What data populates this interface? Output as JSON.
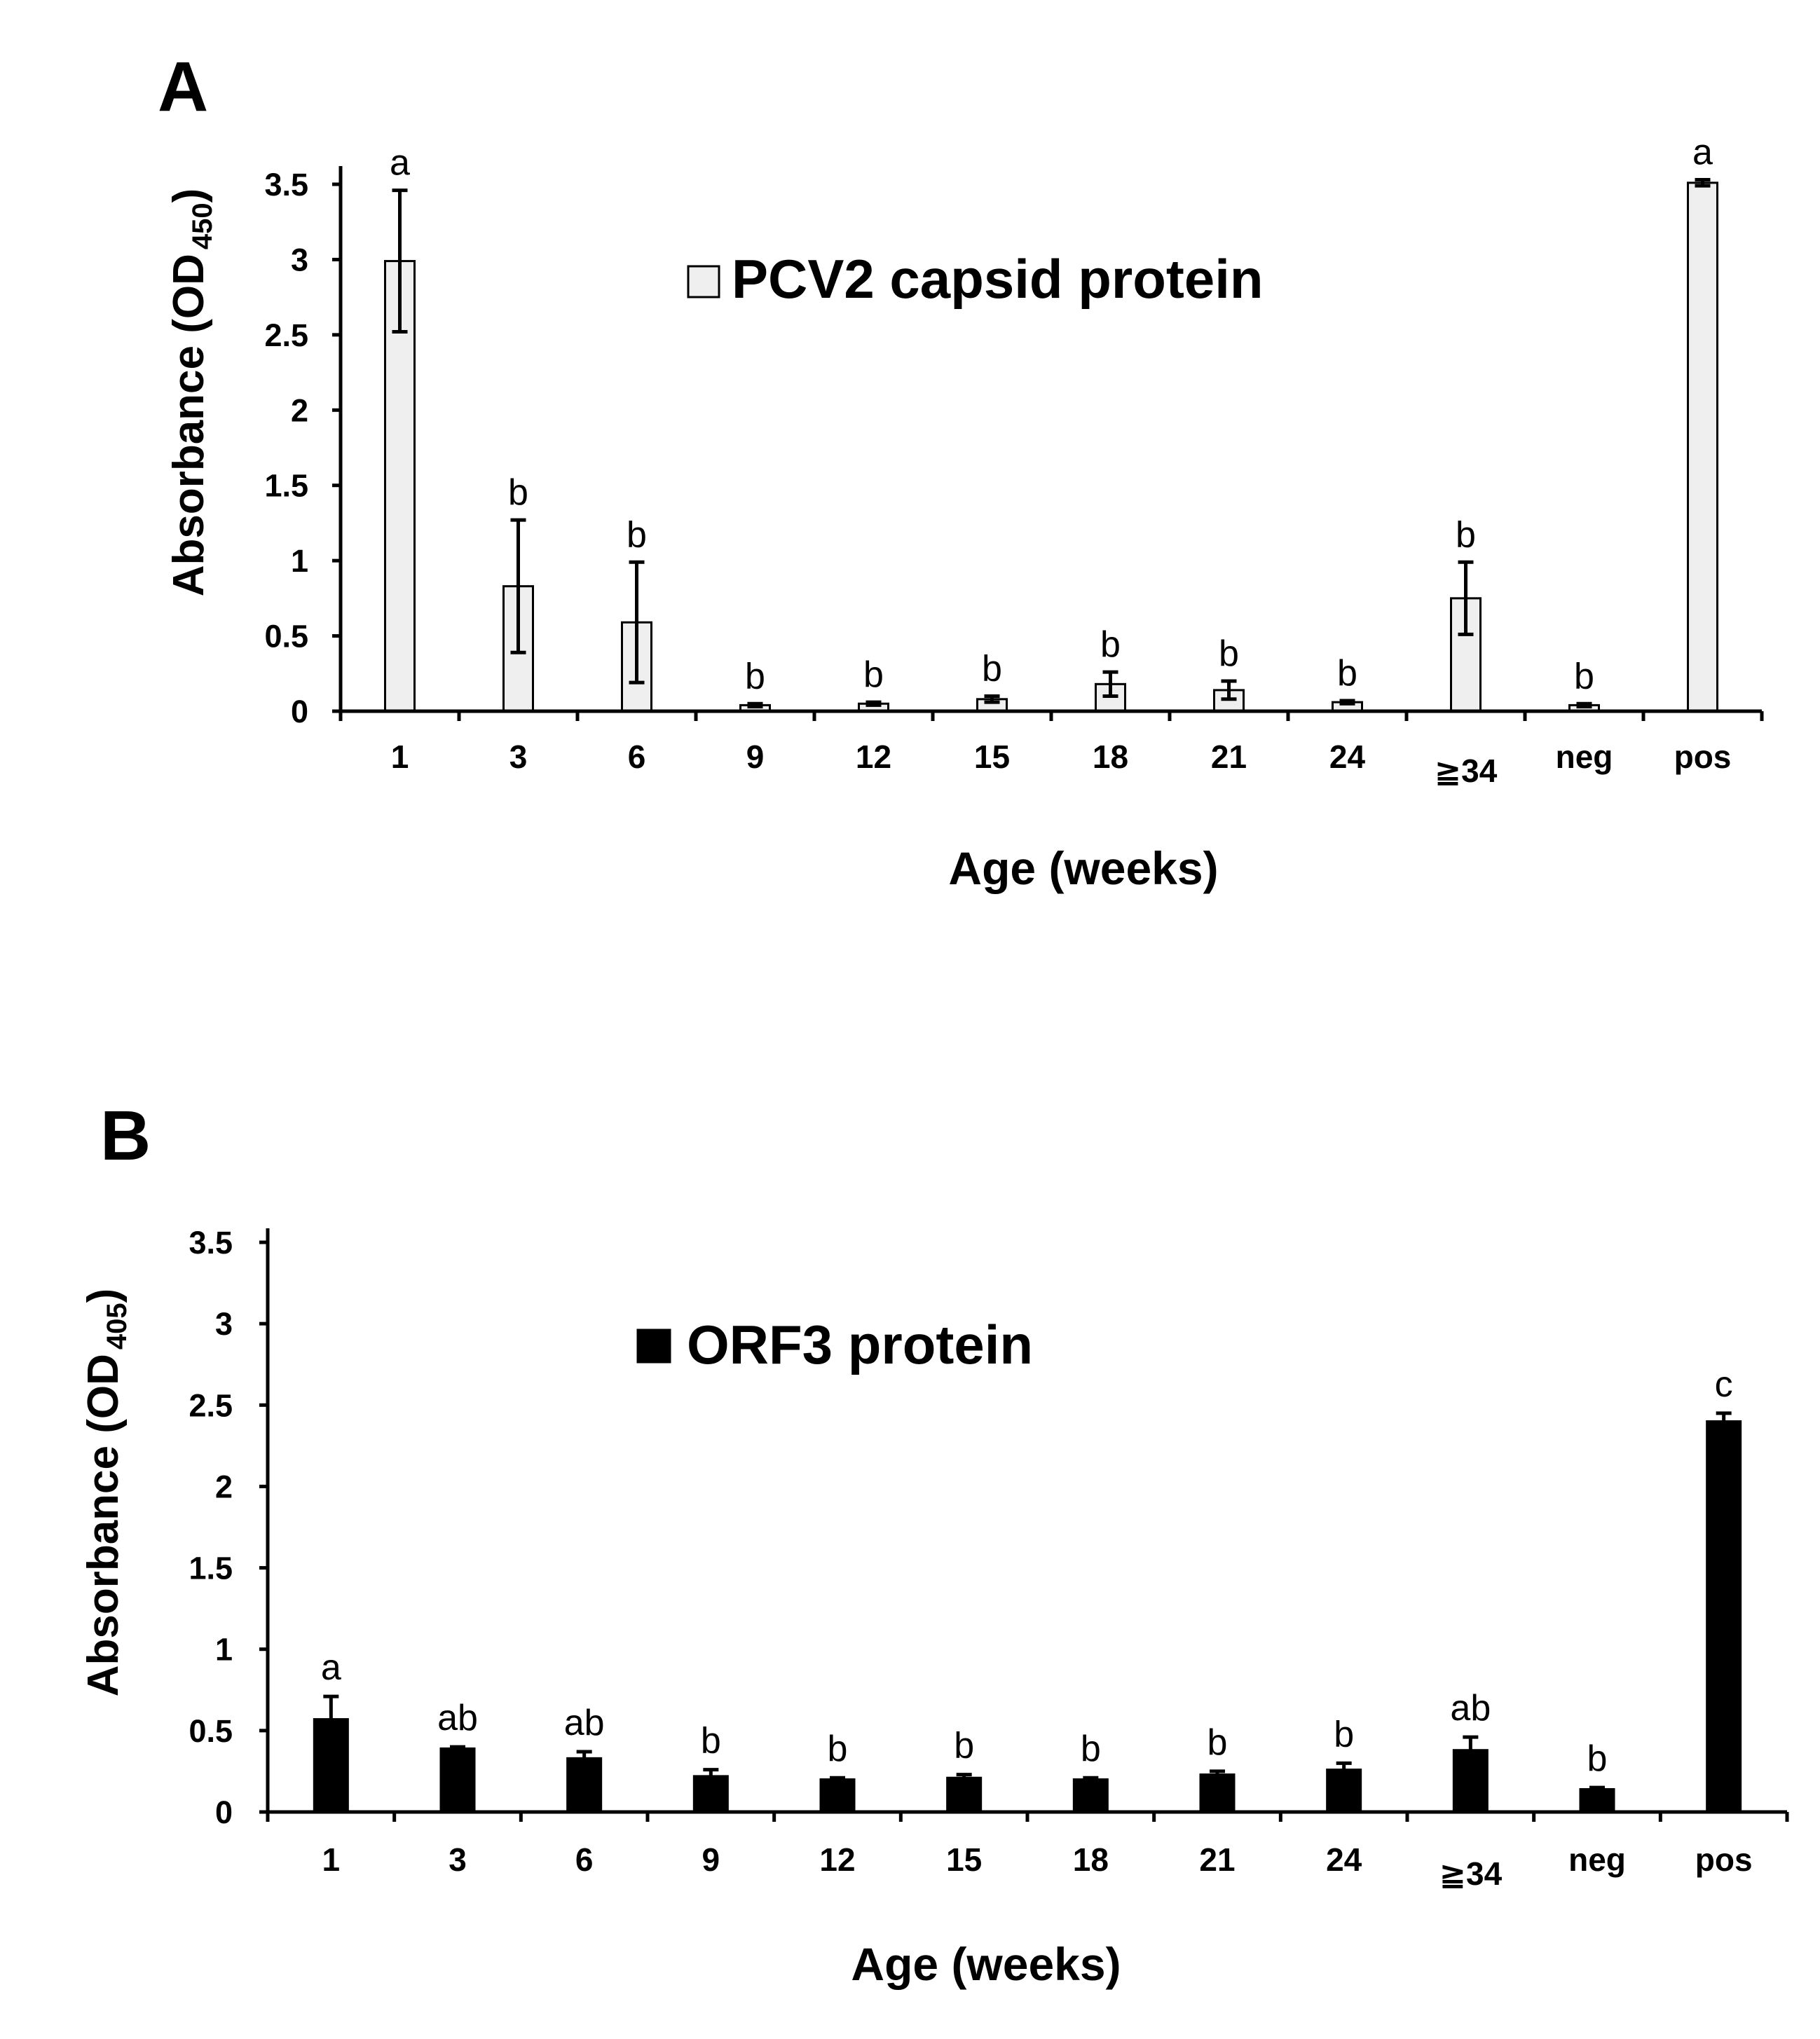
{
  "chart_data": [
    {
      "type": "bar",
      "panel_label": "A",
      "legend": "PCV2 capsid protein",
      "xlabel": "Age (weeks)",
      "ylabel_main": "Absorbance (OD",
      "ylabel_sub": "450",
      "ylabel_close": ")",
      "ylim": [
        0,
        3.5
      ],
      "yticks": [
        "0",
        "0.5",
        "1",
        "1.5",
        "2",
        "2.5",
        "3",
        "3.5"
      ],
      "categories": [
        "1",
        "3",
        "6",
        "9",
        "12",
        "15",
        "18",
        "21",
        "24",
        "≧34",
        "neg",
        "pos"
      ],
      "values": [
        2.99,
        0.83,
        0.59,
        0.04,
        0.05,
        0.08,
        0.18,
        0.14,
        0.06,
        0.75,
        0.04,
        3.51
      ],
      "errors": [
        0.47,
        0.44,
        0.4,
        0.01,
        0.01,
        0.02,
        0.08,
        0.06,
        0.01,
        0.24,
        0.01,
        0.02
      ],
      "significance": [
        "a",
        "b",
        "b",
        "b",
        "b",
        "b",
        "b",
        "b",
        "b",
        "b",
        "b",
        "a"
      ],
      "bar_color": "#efefef",
      "bar_edge": "#000000"
    },
    {
      "type": "bar",
      "panel_label": "B",
      "legend": "ORF3 protein",
      "xlabel": "Age (weeks)",
      "ylabel_main": "Absorbance (OD",
      "ylabel_sub": "405",
      "ylabel_close": ")",
      "ylim": [
        0,
        3.5
      ],
      "yticks": [
        "0",
        "0.5",
        "1",
        "1.5",
        "2",
        "2.5",
        "3",
        "3.5"
      ],
      "categories": [
        "1",
        "3",
        "6",
        "9",
        "12",
        "15",
        "18",
        "21",
        "24",
        "≧34",
        "neg",
        "pos"
      ],
      "values": [
        0.57,
        0.39,
        0.33,
        0.22,
        0.2,
        0.21,
        0.2,
        0.23,
        0.26,
        0.38,
        0.14,
        2.4
      ],
      "errors": [
        0.14,
        0.01,
        0.04,
        0.04,
        0.01,
        0.02,
        0.01,
        0.02,
        0.04,
        0.08,
        0.01,
        0.05
      ],
      "significance": [
        "a",
        "ab",
        "ab",
        "b",
        "b",
        "b",
        "b",
        "b",
        "b",
        "ab",
        "b",
        "c"
      ],
      "bar_color": "#000000",
      "bar_edge": "#000000"
    }
  ]
}
